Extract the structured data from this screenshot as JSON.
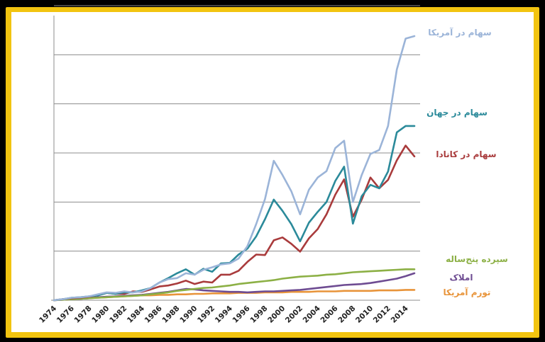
{
  "chart_data": {
    "type": "line",
    "title": "",
    "xlabel": "",
    "ylabel": "",
    "x": [
      1974,
      1975,
      1976,
      1977,
      1978,
      1979,
      1980,
      1981,
      1982,
      1983,
      1984,
      1985,
      1986,
      1987,
      1988,
      1989,
      1990,
      1991,
      1992,
      1993,
      1994,
      1995,
      1996,
      1997,
      1998,
      1999,
      2000,
      2001,
      2002,
      2003,
      2004,
      2005,
      2006,
      2007,
      2008,
      2009,
      2010,
      2011,
      2012,
      2013,
      2014,
      2015
    ],
    "xticks": [
      "1974",
      "1976",
      "1978",
      "1980",
      "1982",
      "1984",
      "1986",
      "1988",
      "1990",
      "1992",
      "1994",
      "1996",
      "1998",
      "2000",
      "2002",
      "2004",
      "2006",
      "2008",
      "2010",
      "2012",
      "2014"
    ],
    "ylim": [
      0,
      6
    ],
    "grid_y": [
      1,
      2,
      3,
      4,
      5,
      6
    ],
    "series": [
      {
        "name": "سهام در آمریکا",
        "color": "#9bb4d8",
        "values": [
          0.0,
          0.02,
          0.05,
          0.06,
          0.08,
          0.12,
          0.16,
          0.15,
          0.18,
          0.16,
          0.18,
          0.25,
          0.36,
          0.43,
          0.45,
          0.55,
          0.52,
          0.62,
          0.67,
          0.73,
          0.75,
          0.85,
          1.1,
          1.55,
          2.06,
          2.84,
          2.55,
          2.22,
          1.75,
          2.25,
          2.5,
          2.63,
          3.1,
          3.25,
          2.0,
          2.55,
          2.98,
          3.06,
          3.55,
          4.7,
          5.33,
          5.38
        ]
      },
      {
        "name": "سهام در جهان",
        "color": "#2b8a9a",
        "values": [
          0.0,
          0.02,
          0.05,
          0.06,
          0.08,
          0.1,
          0.15,
          0.13,
          0.16,
          0.16,
          0.2,
          0.25,
          0.36,
          0.45,
          0.55,
          0.63,
          0.52,
          0.64,
          0.58,
          0.75,
          0.76,
          0.93,
          1.05,
          1.3,
          1.65,
          2.05,
          1.82,
          1.55,
          1.2,
          1.58,
          1.8,
          2.0,
          2.43,
          2.72,
          1.56,
          2.12,
          2.35,
          2.28,
          2.62,
          3.42,
          3.55,
          3.55
        ]
      },
      {
        "name": "سهام در کانادا",
        "color": "#a93b3c",
        "values": [
          0.0,
          0.02,
          0.04,
          0.05,
          0.07,
          0.1,
          0.15,
          0.13,
          0.13,
          0.18,
          0.17,
          0.22,
          0.28,
          0.3,
          0.34,
          0.4,
          0.33,
          0.38,
          0.36,
          0.52,
          0.52,
          0.6,
          0.78,
          0.93,
          0.92,
          1.22,
          1.28,
          1.15,
          0.99,
          1.26,
          1.45,
          1.75,
          2.15,
          2.46,
          1.7,
          2.05,
          2.5,
          2.28,
          2.45,
          2.85,
          3.15,
          2.93
        ]
      },
      {
        "name": "سپرده پنج‌ساله",
        "color": "#8cb045",
        "values": [
          0.0,
          0.01,
          0.02,
          0.03,
          0.04,
          0.05,
          0.06,
          0.07,
          0.08,
          0.09,
          0.1,
          0.12,
          0.14,
          0.16,
          0.19,
          0.21,
          0.23,
          0.25,
          0.26,
          0.28,
          0.3,
          0.33,
          0.35,
          0.37,
          0.39,
          0.41,
          0.44,
          0.46,
          0.48,
          0.49,
          0.5,
          0.52,
          0.53,
          0.55,
          0.57,
          0.58,
          0.59,
          0.6,
          0.61,
          0.62,
          0.63,
          0.63
        ]
      },
      {
        "name": "املاک",
        "color": "#6e4c92",
        "values": [
          0.0,
          0.01,
          0.02,
          0.03,
          0.04,
          0.06,
          0.07,
          0.08,
          0.09,
          0.1,
          0.11,
          0.13,
          0.15,
          0.17,
          0.2,
          0.23,
          0.22,
          0.2,
          0.19,
          0.18,
          0.17,
          0.17,
          0.16,
          0.17,
          0.18,
          0.18,
          0.19,
          0.2,
          0.21,
          0.23,
          0.25,
          0.27,
          0.29,
          0.31,
          0.32,
          0.33,
          0.35,
          0.38,
          0.41,
          0.44,
          0.49,
          0.55
        ]
      },
      {
        "name": "تورم آمریکا",
        "color": "#e8943a",
        "values": [
          0.0,
          0.01,
          0.02,
          0.03,
          0.04,
          0.05,
          0.06,
          0.07,
          0.08,
          0.09,
          0.1,
          0.1,
          0.11,
          0.11,
          0.12,
          0.12,
          0.13,
          0.13,
          0.14,
          0.14,
          0.14,
          0.15,
          0.15,
          0.15,
          0.16,
          0.16,
          0.16,
          0.17,
          0.17,
          0.17,
          0.18,
          0.18,
          0.18,
          0.19,
          0.19,
          0.19,
          0.19,
          0.2,
          0.2,
          0.2,
          0.21,
          0.21
        ]
      }
    ],
    "legend": "direct-labels-right"
  }
}
